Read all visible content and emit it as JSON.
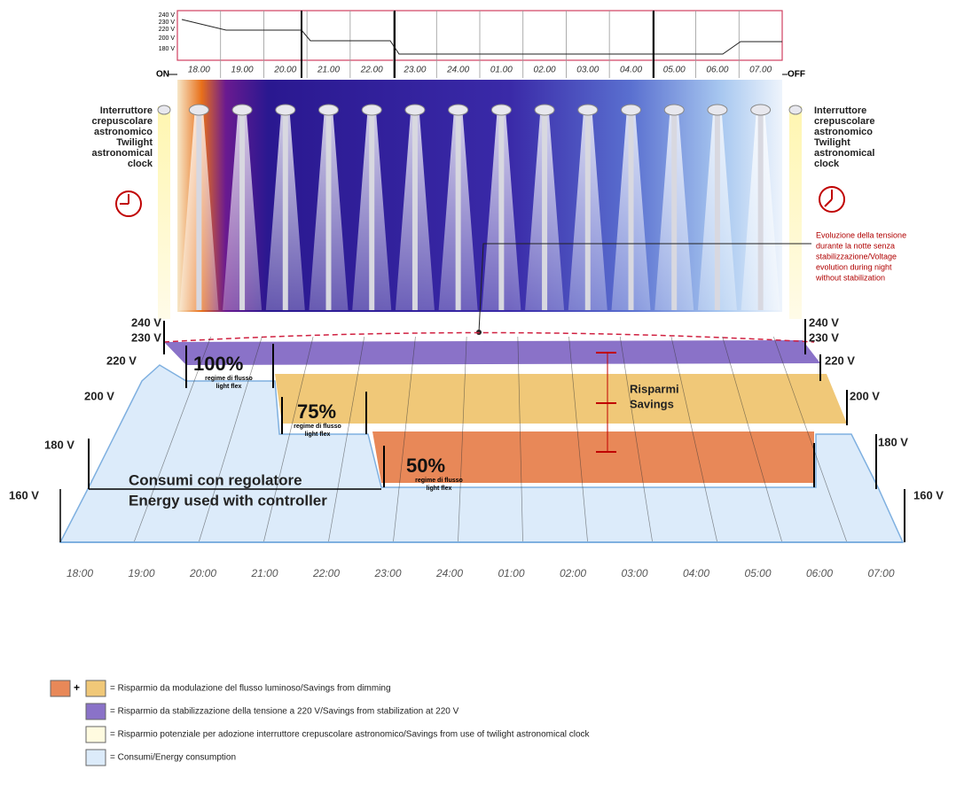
{
  "top_chart": {
    "voltage_labels": [
      "240 V",
      "230 V",
      "220 V",
      "200 V",
      "180 V"
    ],
    "hours": [
      "18.00",
      "19.00",
      "20.00",
      "21.00",
      "22.00",
      "23.00",
      "24.00",
      "01.00",
      "02.00",
      "03.00",
      "04.00",
      "05.00",
      "06.00",
      "07.00"
    ],
    "on_label": "ON",
    "off_label": "OFF"
  },
  "left_clock": {
    "lines": [
      "Interruttore",
      "crepuscolare",
      "astronomico",
      "Twilight",
      "astronomical",
      "clock"
    ]
  },
  "right_clock": {
    "lines": [
      "Interruttore",
      "crepuscolare",
      "astronomico",
      "Twilight",
      "astronomical",
      "clock"
    ]
  },
  "annotation": {
    "lines": [
      "Evoluzione della tensione",
      "durante la notte senza",
      "stabilizzazione/Voltage",
      "evolution during night",
      "without stabilization"
    ]
  },
  "main_chart": {
    "left_voltages": [
      "240 V",
      "230 V",
      "220 V",
      "200 V",
      "180 V",
      "160 V"
    ],
    "right_voltages": [
      "240 V",
      "230 V",
      "220 V",
      "200 V",
      "180 V",
      "160 V"
    ],
    "levels": [
      {
        "percent": "100%",
        "line1": "regime di flusso",
        "line2": "light flex"
      },
      {
        "percent": "75%",
        "line1": "regime di flusso",
        "line2": "light flex"
      },
      {
        "percent": "50%",
        "line1": "regime di flusso",
        "line2": "light flex"
      }
    ],
    "savings": [
      "Risparmi",
      "Savings"
    ],
    "consumption": [
      "Consumi con regolatore",
      "Energy used with controller"
    ],
    "hours": [
      "18:00",
      "19:00",
      "20:00",
      "21:00",
      "22:00",
      "23:00",
      "24:00",
      "01:00",
      "02:00",
      "03:00",
      "04:00",
      "05:00",
      "06:00",
      "07:00"
    ]
  },
  "legend": {
    "plus": "+",
    "items": [
      "= Risparmio da modulazione del flusso luminoso/Savings from dimming",
      "= Risparmio da stabilizzazione della tensione a 220 V/Savings from stabilization at 220 V",
      "= Risparmio potenziale per adozione interruttore crepuscolare astronomico/Savings from use of twilight astronomical clock",
      "= Consumi/Energy consumption"
    ]
  }
}
